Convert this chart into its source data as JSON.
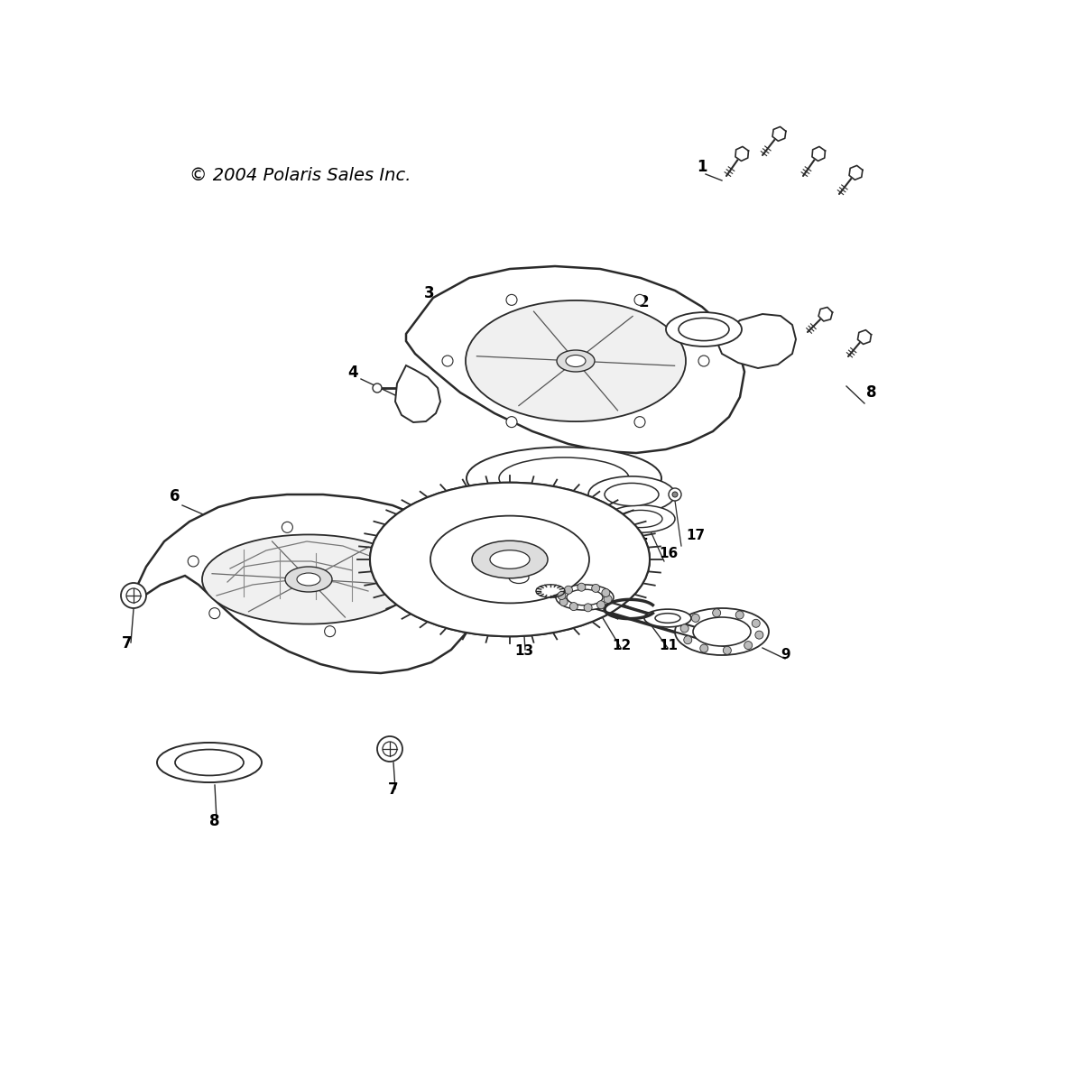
{
  "copyright": "© 2004 Polaris Sales Inc.",
  "background_color": "#ffffff",
  "line_color": "#2a2a2a",
  "label_color": "#000000",
  "figsize": [
    11.88,
    11.88
  ],
  "dpi": 100
}
